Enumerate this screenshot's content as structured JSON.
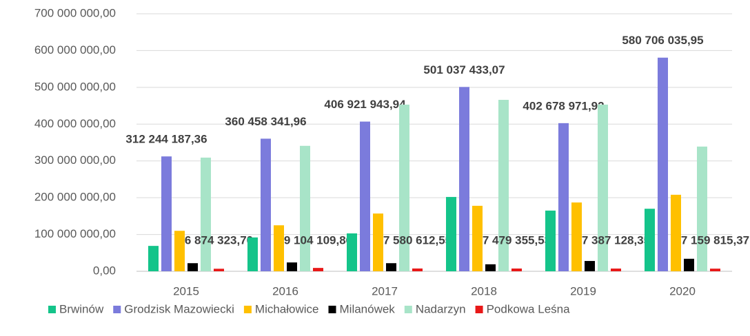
{
  "chart_data": {
    "type": "bar",
    "categories": [
      "2015",
      "2016",
      "2017",
      "2018",
      "2019",
      "2020"
    ],
    "series": [
      {
        "name": "Brwinów",
        "color": "#14c48a",
        "values": [
          69000000,
          92000000,
          103000000,
          202000000,
          165000000,
          170000000
        ]
      },
      {
        "name": "Grodzisk Mazowiecki",
        "color": "#7b7bdc",
        "values": [
          312244187.36,
          360458341.96,
          406921943.94,
          501037433.07,
          402678971.92,
          580706035.95
        ],
        "value_labels": [
          "312 244 187,36",
          "360 458 341,96",
          "406 921 943,94",
          "501 037 433,07",
          "402 678 971,92",
          "580 706 035,95"
        ]
      },
      {
        "name": "Michałowice",
        "color": "#ffc000",
        "values": [
          110000000,
          125000000,
          157000000,
          178000000,
          187000000,
          208000000
        ]
      },
      {
        "name": "Milanówek",
        "color": "#000000",
        "values": [
          22000000,
          24000000,
          22000000,
          19000000,
          28000000,
          34000000
        ]
      },
      {
        "name": "Nadarzyn",
        "color": "#a8e4c8",
        "values": [
          309000000,
          341000000,
          453000000,
          466000000,
          453000000,
          339000000
        ]
      },
      {
        "name": "Podkowa Leśna",
        "color": "#e81818",
        "values": [
          6874323.7,
          9104109.86,
          7580612.55,
          7479355.53,
          7387128.35,
          7159815.37
        ],
        "value_labels": [
          "6 874 323,70",
          "9 104 109,86",
          "7 580 612,55",
          "7 479 355,53",
          "7 387 128,35",
          "7 159 815,37"
        ]
      }
    ],
    "ylim": [
      0,
      700000000
    ],
    "yticks": [
      {
        "value": 0,
        "label": "0,00"
      },
      {
        "value": 100000000,
        "label": "100 000 000,00"
      },
      {
        "value": 200000000,
        "label": "200 000 000,00"
      },
      {
        "value": 300000000,
        "label": "300 000 000,00"
      },
      {
        "value": 400000000,
        "label": "400 000 000,00"
      },
      {
        "value": 500000000,
        "label": "500 000 000,00"
      },
      {
        "value": 600000000,
        "label": "600 000 000,00"
      },
      {
        "value": 700000000,
        "label": "700 000 000,00"
      }
    ],
    "grid": true
  }
}
